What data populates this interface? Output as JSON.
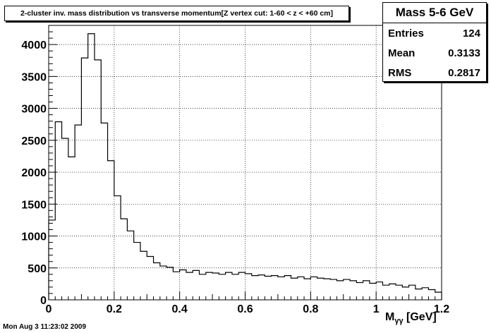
{
  "title": "2-cluster inv. mass distribution vs transverse momentum[Z vertex cut: 1-60 < z < +60 cm]",
  "stats": {
    "name": "Mass 5-6 GeV",
    "rows": [
      {
        "label": "Entries",
        "value": "124"
      },
      {
        "label": "Mean",
        "value": "0.3133"
      },
      {
        "label": "RMS",
        "value": "0.2817"
      }
    ]
  },
  "timestamp": "Mon Aug  3 11:23:02 2009",
  "chart_data": {
    "type": "histogram",
    "title": "2-cluster inv. mass distribution vs transverse momentum[Z vertex cut: 1-60 < z < +60 cm]",
    "xlabel_main": "M",
    "xlabel_sub": "γγ",
    "xlabel_unit": " [GeV]",
    "xlim": [
      0,
      1.2
    ],
    "ylim": [
      0,
      4300
    ],
    "grid": true,
    "x_ticks": [
      "0",
      "0.2",
      "0.4",
      "0.6",
      "0.8",
      "1",
      "1.2"
    ],
    "x_tick_values": [
      0,
      0.2,
      0.4,
      0.6,
      0.8,
      1.0,
      1.2
    ],
    "y_ticks": [
      "0",
      "500",
      "1000",
      "1500",
      "2000",
      "2500",
      "3000",
      "3500",
      "4000"
    ],
    "y_tick_values": [
      0,
      500,
      1000,
      1500,
      2000,
      2500,
      3000,
      3500,
      4000
    ],
    "bin_width": 0.02,
    "bins_x_low": [
      0.0,
      0.02,
      0.04,
      0.06,
      0.08,
      0.1,
      0.12,
      0.14,
      0.16,
      0.18,
      0.2,
      0.22,
      0.24,
      0.26,
      0.28,
      0.3,
      0.32,
      0.34,
      0.36,
      0.38,
      0.4,
      0.42,
      0.44,
      0.46,
      0.48,
      0.5,
      0.52,
      0.54,
      0.56,
      0.58,
      0.6,
      0.62,
      0.64,
      0.66,
      0.68,
      0.7,
      0.72,
      0.74,
      0.76,
      0.78,
      0.8,
      0.82,
      0.84,
      0.86,
      0.88,
      0.9,
      0.92,
      0.94,
      0.96,
      0.98,
      1.0,
      1.02,
      1.04,
      1.06,
      1.08,
      1.1,
      1.12,
      1.14,
      1.16,
      1.18
    ],
    "values": [
      1250,
      2790,
      2530,
      2240,
      2740,
      3790,
      4170,
      3760,
      2770,
      2180,
      1630,
      1270,
      1080,
      900,
      760,
      680,
      580,
      530,
      510,
      440,
      470,
      430,
      460,
      400,
      430,
      420,
      400,
      430,
      400,
      430,
      410,
      380,
      390,
      370,
      380,
      360,
      380,
      340,
      360,
      330,
      360,
      340,
      330,
      320,
      300,
      320,
      300,
      270,
      300,
      260,
      280,
      230,
      250,
      230,
      200,
      230,
      170,
      190,
      160,
      120
    ]
  }
}
